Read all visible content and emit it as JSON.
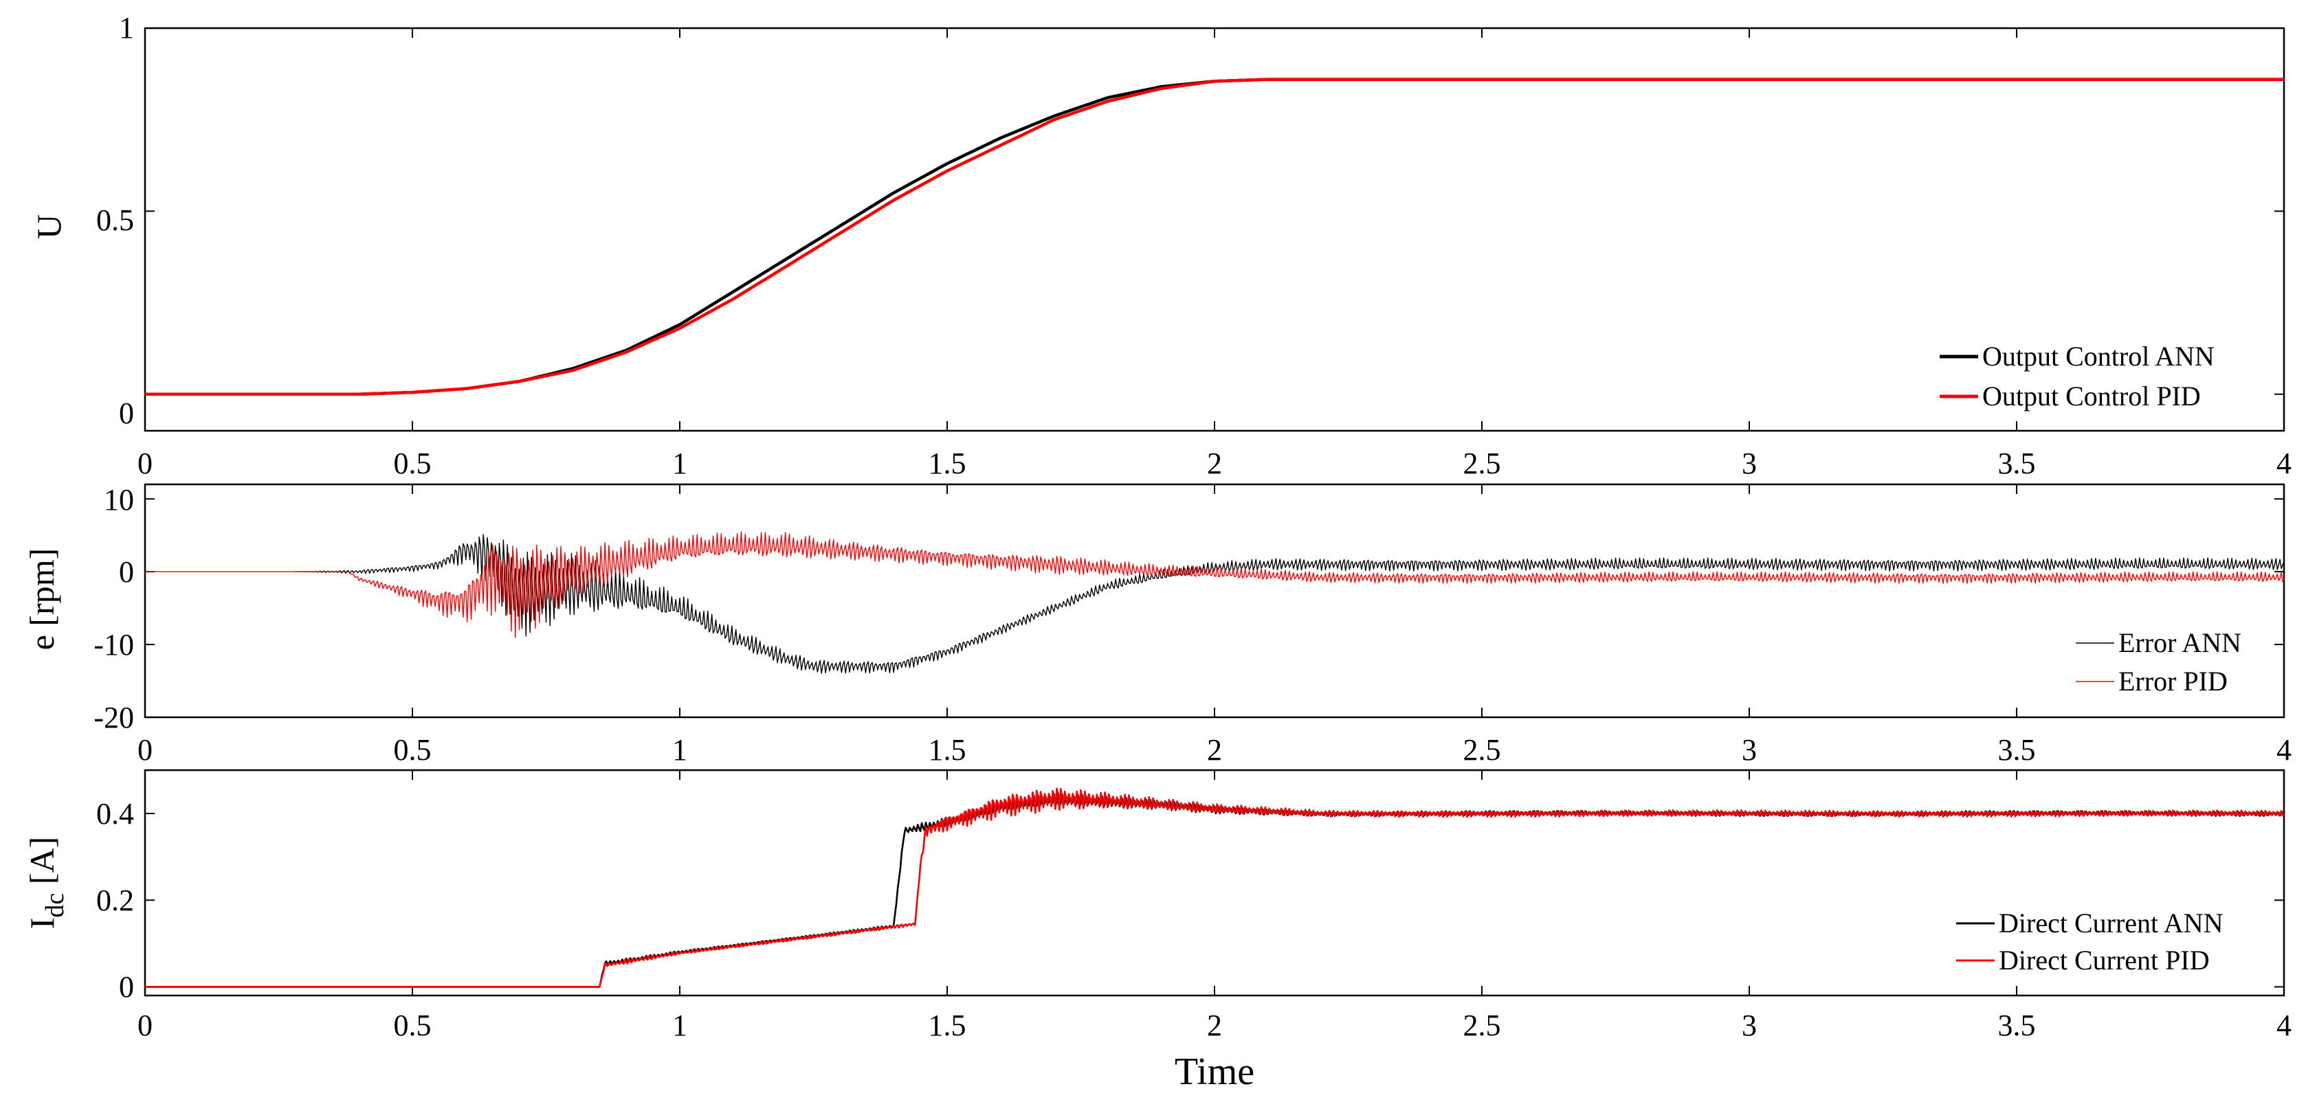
{
  "chart_data": [
    {
      "type": "line",
      "ylabel": "U",
      "xlim": [
        0,
        4
      ],
      "ylim": [
        -0.1,
        1
      ],
      "xticks": [
        0,
        0.5,
        1,
        1.5,
        2,
        2.5,
        3,
        3.5,
        4
      ],
      "xtick_labels": [
        "0",
        "0.5",
        "1",
        "1.5",
        "2",
        "2.5",
        "3",
        "3.5",
        "4"
      ],
      "yticks": [
        0,
        0.5,
        1
      ],
      "ytick_labels": [
        "0",
        "0.5",
        "1"
      ],
      "legend_position": "bottom-right",
      "series": [
        {
          "name": "Output Control ANN",
          "color": "#000000",
          "x": [
            0,
            0.4,
            0.5,
            0.6,
            0.7,
            0.8,
            0.9,
            1.0,
            1.1,
            1.2,
            1.3,
            1.4,
            1.5,
            1.6,
            1.7,
            1.8,
            1.9,
            2.0,
            2.1,
            2.2,
            4.0
          ],
          "y": [
            0,
            0,
            0.005,
            0.015,
            0.035,
            0.07,
            0.12,
            0.19,
            0.28,
            0.37,
            0.46,
            0.55,
            0.63,
            0.7,
            0.76,
            0.81,
            0.84,
            0.855,
            0.86,
            0.86,
            0.86
          ]
        },
        {
          "name": "Output Control PID",
          "color": "#ff0000",
          "x": [
            0,
            0.4,
            0.5,
            0.6,
            0.7,
            0.8,
            0.9,
            1.0,
            1.1,
            1.2,
            1.3,
            1.4,
            1.5,
            1.6,
            1.7,
            1.8,
            1.9,
            2.0,
            2.1,
            2.2,
            4.0
          ],
          "y": [
            0,
            0,
            0.005,
            0.015,
            0.035,
            0.065,
            0.115,
            0.18,
            0.26,
            0.35,
            0.44,
            0.53,
            0.61,
            0.68,
            0.75,
            0.8,
            0.835,
            0.855,
            0.86,
            0.86,
            0.86
          ]
        }
      ]
    },
    {
      "type": "line",
      "ylabel": "e [rpm]",
      "xlim": [
        0,
        4
      ],
      "ylim": [
        -20,
        12
      ],
      "xticks": [
        0,
        0.5,
        1,
        1.5,
        2,
        2.5,
        3,
        3.5,
        4
      ],
      "xtick_labels": [
        "0",
        "0.5",
        "1",
        "1.5",
        "2",
        "2.5",
        "3",
        "3.5",
        "4"
      ],
      "yticks": [
        10,
        0,
        -10,
        -20
      ],
      "ytick_labels": [
        "10",
        "0",
        "-10",
        "-20"
      ],
      "legend_position": "bottom-right",
      "series": [
        {
          "name": "Error ANN",
          "color": "#000000",
          "x": [
            0.28,
            0.4,
            0.5,
            0.55,
            0.6,
            0.65,
            0.7,
            0.8,
            0.9,
            1.0,
            1.1,
            1.2,
            1.25,
            1.3,
            1.4,
            1.5,
            1.6,
            1.7,
            1.8,
            1.9,
            2.0,
            2.1,
            2.2,
            4.0
          ],
          "y": [
            0,
            0,
            0.5,
            1,
            3,
            2,
            -3,
            -2,
            -3,
            -5,
            -9,
            -12,
            -13,
            -13,
            -13,
            -11,
            -8,
            -5,
            -2,
            -0.5,
            0.5,
            1,
            1,
            1
          ],
          "osc_amp": [
            0,
            0.3,
            0.5,
            0.6,
            2,
            5,
            7,
            5,
            3,
            2,
            1.5,
            1.2,
            1.1,
            1.0,
            0.9,
            0.8,
            0.7,
            0.7,
            0.8,
            0.8,
            0.9,
            0.9,
            0.9,
            0.9
          ]
        },
        {
          "name": "Error PID",
          "color": "#ff0000",
          "x": [
            0,
            0.38,
            0.4,
            0.45,
            0.5,
            0.55,
            0.6,
            0.65,
            0.7,
            0.75,
            0.8,
            0.9,
            1.0,
            1.1,
            1.2,
            1.3,
            1.4,
            1.5,
            1.6,
            1.7,
            1.8,
            1.9,
            2.0,
            2.2,
            4.0
          ],
          "y": [
            0,
            0,
            -1,
            -2,
            -3,
            -4,
            -4,
            0,
            -2,
            -1,
            0,
            1.5,
            3,
            3.5,
            3.5,
            3,
            2.5,
            2,
            1.5,
            1,
            0.5,
            0,
            -0.2,
            -0.8,
            -0.8
          ],
          "osc_amp": [
            0,
            0,
            0.3,
            0.6,
            1,
            2,
            3,
            6,
            8,
            6,
            4,
            3,
            2,
            2,
            2,
            1.5,
            1.3,
            1.2,
            1.3,
            1.5,
            1.2,
            1.0,
            0.9,
            0.8,
            0.8
          ]
        }
      ]
    },
    {
      "type": "line",
      "ylabel": "I",
      "ylabel_subscript": "dc",
      "ylabel_suffix": " [A]",
      "xlabel": "Time",
      "xlim": [
        0,
        4
      ],
      "ylim": [
        -0.02,
        0.5
      ],
      "xticks": [
        0,
        0.5,
        1,
        1.5,
        2,
        2.5,
        3,
        3.5,
        4
      ],
      "xtick_labels": [
        "0",
        "0.5",
        "1",
        "1.5",
        "2",
        "2.5",
        "3",
        "3.5",
        "4"
      ],
      "yticks": [
        0,
        0.2,
        0.4
      ],
      "ytick_labels": [
        "0",
        "0.2",
        "0.4"
      ],
      "legend_position": "bottom-right",
      "series": [
        {
          "name": "Direct Current ANN",
          "color": "#000000",
          "x": [
            0,
            0.85,
            0.86,
            0.9,
            1.0,
            1.2,
            1.4,
            1.41,
            1.42,
            1.5,
            1.6,
            1.7,
            1.8,
            1.9,
            2.0,
            2.1,
            2.2,
            4.0
          ],
          "y": [
            0,
            0,
            0.055,
            0.06,
            0.08,
            0.11,
            0.14,
            0.25,
            0.36,
            0.38,
            0.415,
            0.43,
            0.425,
            0.42,
            0.41,
            0.405,
            0.4,
            0.4
          ],
          "osc_amp": [
            0,
            0,
            0.004,
            0.006,
            0.004,
            0.004,
            0.004,
            0.004,
            0.01,
            0.012,
            0.015,
            0.018,
            0.015,
            0.012,
            0.01,
            0.008,
            0.006,
            0.006
          ]
        },
        {
          "name": "Direct Current PID",
          "color": "#ff0000",
          "x": [
            0,
            0.85,
            0.86,
            0.9,
            1.0,
            1.2,
            1.44,
            1.45,
            1.46,
            1.5,
            1.6,
            1.7,
            1.8,
            1.9,
            2.0,
            2.1,
            2.2,
            4.0
          ],
          "y": [
            0,
            0,
            0.05,
            0.058,
            0.078,
            0.108,
            0.145,
            0.28,
            0.36,
            0.38,
            0.42,
            0.435,
            0.43,
            0.42,
            0.41,
            0.405,
            0.4,
            0.4
          ],
          "osc_amp": [
            0,
            0,
            0.004,
            0.006,
            0.004,
            0.004,
            0.004,
            0.004,
            0.015,
            0.02,
            0.03,
            0.03,
            0.02,
            0.015,
            0.012,
            0.01,
            0.008,
            0.007
          ]
        }
      ]
    }
  ]
}
